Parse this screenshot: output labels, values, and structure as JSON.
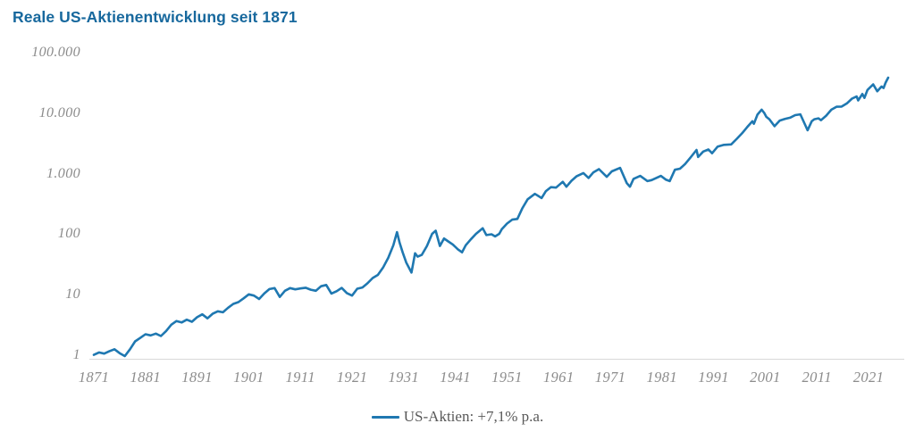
{
  "title": "Reale US-Aktienentwicklung seit 1871",
  "legend": {
    "label": "US-Aktien: +7,1% p.a."
  },
  "colors": {
    "title_text": "#17689d",
    "series_line": "#1f78b1",
    "tick_text": "#8c8c8c",
    "legend_text": "#595959",
    "axis_line": "#d8d8d8",
    "background": "#ffffff"
  },
  "chart_data": {
    "type": "line",
    "title": "Reale US-Aktienentwicklung seit 1871",
    "xlabel": "",
    "ylabel": "",
    "y_scale": "log",
    "ylim": [
      1,
      100000
    ],
    "xlim": [
      1871,
      2025
    ],
    "grid": false,
    "legend_position": "bottom-center",
    "y_ticks": [
      {
        "value": 100000,
        "label": "100.000"
      },
      {
        "value": 10000,
        "label": "10.000"
      },
      {
        "value": 1000,
        "label": "1.000"
      },
      {
        "value": 100,
        "label": "100"
      },
      {
        "value": 10,
        "label": "10"
      },
      {
        "value": 1,
        "label": "1"
      }
    ],
    "x_ticks": [
      {
        "value": 1871,
        "label": "1871"
      },
      {
        "value": 1881,
        "label": "1881"
      },
      {
        "value": 1891,
        "label": "1891"
      },
      {
        "value": 1901,
        "label": "1901"
      },
      {
        "value": 1911,
        "label": "1911"
      },
      {
        "value": 1921,
        "label": "1921"
      },
      {
        "value": 1931,
        "label": "1931"
      },
      {
        "value": 1941,
        "label": "1941"
      },
      {
        "value": 1951,
        "label": "1951"
      },
      {
        "value": 1961,
        "label": "1961"
      },
      {
        "value": 1971,
        "label": "1971"
      },
      {
        "value": 1981,
        "label": "1981"
      },
      {
        "value": 1991,
        "label": "1991"
      },
      {
        "value": 2001,
        "label": "2001"
      },
      {
        "value": 2011,
        "label": "2011"
      },
      {
        "value": 2021,
        "label": "2021"
      }
    ],
    "series": [
      {
        "name": "US-Aktien: +7,1% p.a.",
        "color": "#1f78b1",
        "x": [
          1871,
          1872,
          1873,
          1874,
          1875,
          1876,
          1877,
          1878,
          1879,
          1880,
          1881,
          1882,
          1883,
          1884,
          1885,
          1886,
          1887,
          1888,
          1889,
          1890,
          1891,
          1892,
          1893,
          1894,
          1895,
          1896,
          1897,
          1898,
          1899,
          1900,
          1901,
          1902,
          1903,
          1904,
          1905,
          1906,
          1907,
          1908,
          1909,
          1910,
          1911,
          1912,
          1913,
          1914,
          1915,
          1916,
          1917,
          1918,
          1919,
          1920,
          1921,
          1922,
          1923,
          1924,
          1925,
          1926,
          1927,
          1928,
          1929,
          1929.7,
          1930.2,
          1930.8,
          1931.5,
          1932.5,
          1933.2,
          1933.7,
          1934.5,
          1935.5,
          1936.5,
          1937.2,
          1938,
          1938.8,
          1939.5,
          1940.5,
          1941.5,
          1942.3,
          1943,
          1944,
          1945,
          1946.3,
          1947,
          1948,
          1948.7,
          1949.5,
          1950,
          1951,
          1952,
          1953,
          1954,
          1955,
          1956.4,
          1957.7,
          1958.5,
          1959.5,
          1960.5,
          1961.8,
          1962.5,
          1963.5,
          1964.5,
          1965.8,
          1966.8,
          1967.7,
          1968.8,
          1970.3,
          1971.3,
          1972.9,
          1974.2,
          1974.8,
          1975.5,
          1976.8,
          1978.2,
          1979,
          1980.8,
          1981.8,
          1982.5,
          1983.5,
          1984.5,
          1985.5,
          1986.5,
          1987.7,
          1988,
          1989,
          1990,
          1990.7,
          1991.8,
          1993,
          1994.4,
          1995.5,
          1996.5,
          1997.5,
          1998.5,
          1998.8,
          1999.5,
          2000.3,
          2000.8,
          2001.2,
          2001.8,
          2002.8,
          2003.8,
          2004.8,
          2005.8,
          2006.8,
          2007.8,
          2008.8,
          2009.2,
          2010,
          2010.5,
          2011.3,
          2011.8,
          2012.8,
          2013.8,
          2014.8,
          2015.8,
          2016.8,
          2017.8,
          2018.7,
          2019,
          2019.8,
          2020.2,
          2020.8,
          2021.9,
          2022.7,
          2023.5,
          2023.9,
          2024.3,
          2024.8
        ],
        "values": [
          1.05,
          1.15,
          1.1,
          1.2,
          1.3,
          1.12,
          1.0,
          1.3,
          1.75,
          2.0,
          2.3,
          2.2,
          2.35,
          2.15,
          2.6,
          3.3,
          3.8,
          3.6,
          4.0,
          3.7,
          4.4,
          4.9,
          4.2,
          5.0,
          5.5,
          5.3,
          6.3,
          7.3,
          7.8,
          9.0,
          10.5,
          10.0,
          8.8,
          10.8,
          12.8,
          13.3,
          9.5,
          12.0,
          13.3,
          12.7,
          13.1,
          13.5,
          12.5,
          12.0,
          14.3,
          15.0,
          10.8,
          11.8,
          13.4,
          11.0,
          10.0,
          13.0,
          13.6,
          16.0,
          19.5,
          22.0,
          29.0,
          42.0,
          68,
          112,
          75,
          52,
          35,
          24,
          50,
          44,
          47,
          66,
          105,
          118,
          66,
          88,
          80,
          70,
          58,
          52,
          68,
          85,
          105,
          130,
          100,
          103,
          95,
          105,
          125,
          155,
          180,
          185,
          280,
          390,
          480,
          410,
          530,
          620,
          610,
          760,
          630,
          790,
          940,
          1060,
          880,
          1080,
          1230,
          920,
          1130,
          1290,
          720,
          630,
          850,
          950,
          780,
          810,
          950,
          820,
          780,
          1200,
          1250,
          1500,
          1900,
          2550,
          1950,
          2400,
          2600,
          2250,
          2900,
          3100,
          3150,
          3900,
          4800,
          6100,
          7600,
          6900,
          9800,
          11800,
          10500,
          9000,
          8200,
          6300,
          7800,
          8300,
          8700,
          9600,
          9900,
          6400,
          5400,
          7600,
          8200,
          8500,
          7900,
          9400,
          11800,
          13200,
          13300,
          15000,
          18000,
          19500,
          16800,
          21500,
          18500,
          25000,
          31000,
          23800,
          28500,
          27000,
          33000,
          40000
        ]
      }
    ]
  }
}
